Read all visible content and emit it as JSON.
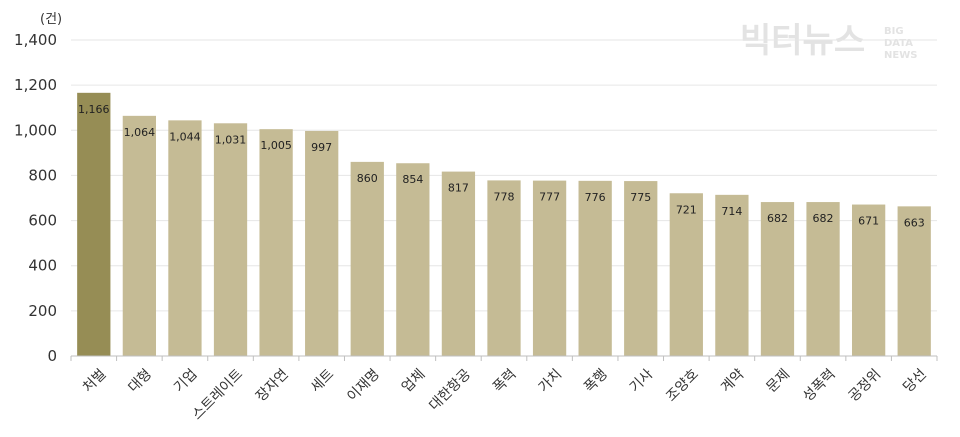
{
  "watermark": {
    "main": "빅터뉴스",
    "sub": [
      "BIG",
      "DATA",
      "NEWS"
    ]
  },
  "colors": {
    "highlight": "#968d55",
    "bar": "#c5bb95",
    "grid": "#e6e6e6",
    "axis": "#bfbfbf"
  },
  "chart_data": {
    "type": "bar",
    "unit_label": "(건)",
    "categories": [
      "처벌",
      "대형",
      "기업",
      "스트레이트",
      "장자연",
      "세트",
      "이재명",
      "업체",
      "대한항공",
      "폭력",
      "가치",
      "폭행",
      "기사",
      "조양호",
      "계약",
      "문제",
      "성폭력",
      "공정위",
      "당선"
    ],
    "values": [
      1166,
      1064,
      1044,
      1031,
      1005,
      997,
      860,
      854,
      817,
      778,
      777,
      776,
      775,
      721,
      714,
      682,
      682,
      671,
      663
    ],
    "value_labels": [
      "1,166",
      "1,064",
      "1,044",
      "1,031",
      "1,005",
      "997",
      "860",
      "854",
      "817",
      "778",
      "777",
      "776",
      "775",
      "721",
      "714",
      "682",
      "682",
      "671",
      "663"
    ],
    "yticks": [
      0,
      200,
      400,
      600,
      800,
      1000,
      1200,
      1400
    ],
    "ytick_labels": [
      "0",
      "200",
      "400",
      "600",
      "800",
      "1,000",
      "1,200",
      "1,400"
    ],
    "ylim": [
      0,
      1400
    ],
    "highlight_index": 0,
    "grid": true,
    "legend": "none"
  }
}
